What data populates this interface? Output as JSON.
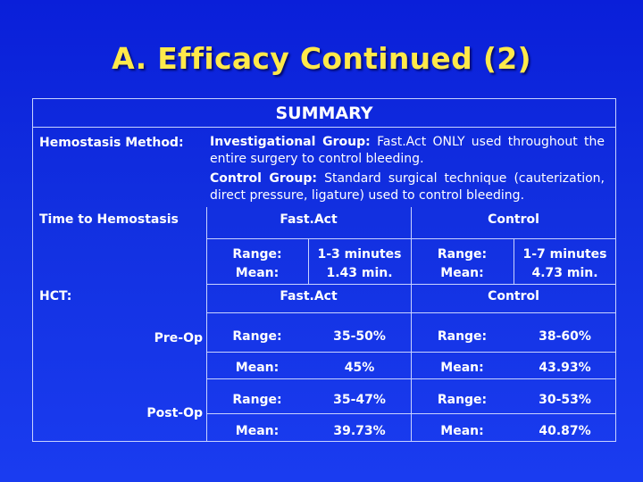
{
  "title": "A.  Efficacy Continued (2)",
  "summary_heading": "SUMMARY",
  "method": {
    "label": "Hemostasis Method:",
    "investigational_label": "Investigational Group:",
    "investigational_text": "Fast.Act ONLY used throughout the entire surgery to control bleeding.",
    "control_label": "Control Group:",
    "control_text": "Standard surgical technique (cauterization, direct pressure, ligature) used to control bleeding."
  },
  "time": {
    "label": "Time to Hemostasis",
    "fastact_header": "Fast.Act",
    "control_header": "Control",
    "range_label": "Range:",
    "mean_label": "Mean:",
    "fastact_range": "1-3 minutes",
    "fastact_mean": "1.43 min.",
    "control_range": "1-7 minutes",
    "control_mean": "4.73 min."
  },
  "hct": {
    "label": "HCT:",
    "fastact_header": "Fast.Act",
    "control_header": "Control",
    "pre_op_label": "Pre-Op",
    "post_op_label": "Post-Op",
    "range_label": "Range:",
    "mean_label": "Mean:",
    "pre_op": {
      "fastact_range": "35-50%",
      "fastact_mean": "45%",
      "control_range": "38-60%",
      "control_mean": "43.93%"
    },
    "post_op": {
      "fastact_range": "35-47%",
      "fastact_mean": "39.73%",
      "control_range": "30-53%",
      "control_mean": "40.87%"
    }
  }
}
